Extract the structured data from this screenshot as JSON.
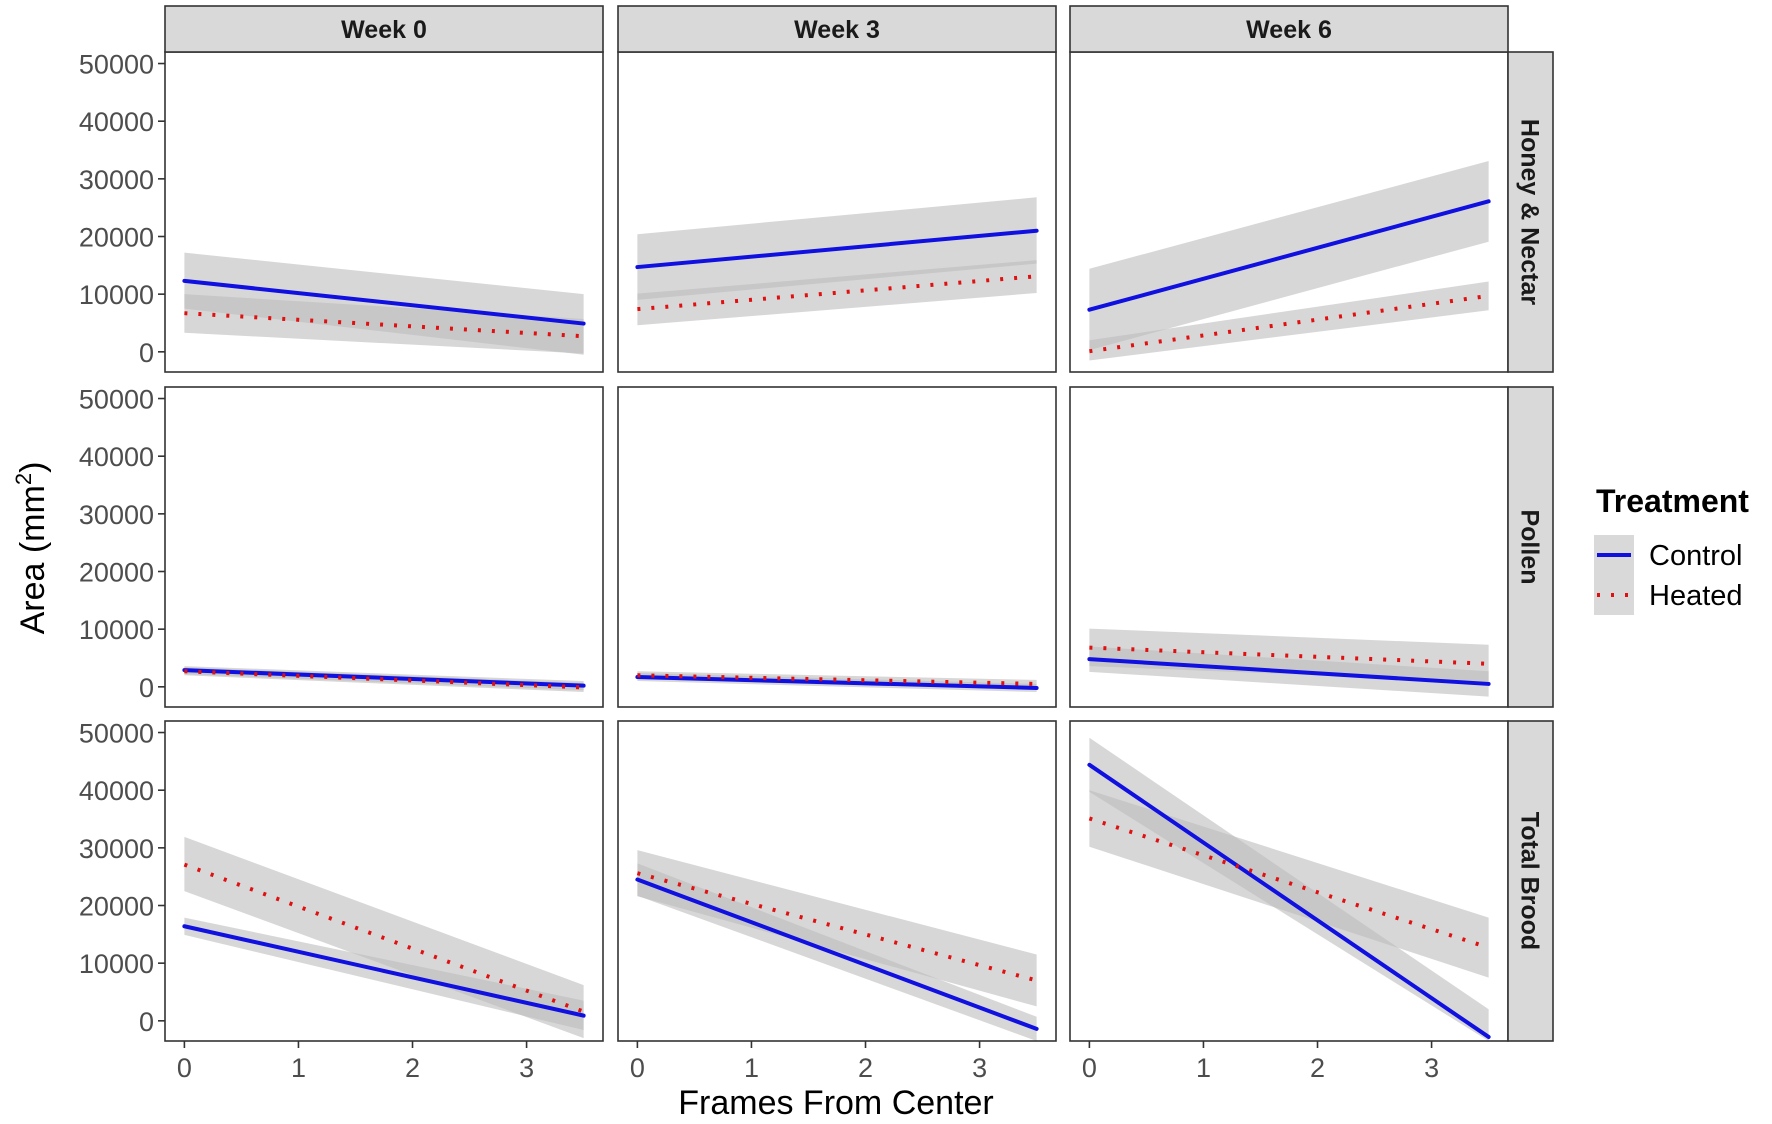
{
  "chart_data": {
    "type": "line",
    "xlabel": "Frames From Center",
    "ylabel": "Area (mm",
    "ylabel_superscript": "2",
    "ylabel_close": ")",
    "xlim": [
      -0.17,
      3.67
    ],
    "ylim": [
      -3500,
      52000
    ],
    "xticks": [
      0,
      1,
      2,
      3
    ],
    "yticks": [
      0,
      10000,
      20000,
      30000,
      40000,
      50000
    ],
    "columns": [
      "Week 0",
      "Week 3",
      "Week 6"
    ],
    "rows": [
      "Honey & Nectar",
      "Pollen",
      "Total Brood"
    ],
    "series_styles": {
      "Control": {
        "color": "#1010e0",
        "dash": "solid"
      },
      "Heated": {
        "color": "#e01010",
        "dash": "dotted"
      }
    },
    "ribbon_color": "#bdbdbd",
    "legend": {
      "title": "Treatment",
      "items": [
        {
          "name": "Control",
          "color": "#1010e0",
          "dash": "solid"
        },
        {
          "name": "Heated",
          "color": "#e01010",
          "dash": "dotted"
        }
      ]
    },
    "panels": [
      {
        "row": "Honey & Nectar",
        "col": "Week 0",
        "series": [
          {
            "name": "Control",
            "x": [
              0,
              3.5
            ],
            "y": [
              12300,
              4900
            ],
            "lower": [
              7500,
              -500
            ],
            "upper": [
              17200,
              10000
            ]
          },
          {
            "name": "Heated",
            "x": [
              0,
              3.5
            ],
            "y": [
              6700,
              2700
            ],
            "lower": [
              3300,
              -300
            ],
            "upper": [
              10000,
              5700
            ]
          }
        ]
      },
      {
        "row": "Honey & Nectar",
        "col": "Week 3",
        "series": [
          {
            "name": "Control",
            "x": [
              0,
              3.5
            ],
            "y": [
              14700,
              21000
            ],
            "lower": [
              9000,
              15300
            ],
            "upper": [
              20400,
              26800
            ]
          },
          {
            "name": "Heated",
            "x": [
              0,
              3.5
            ],
            "y": [
              7400,
              13100
            ],
            "lower": [
              4600,
              10200
            ],
            "upper": [
              10100,
              15900
            ]
          }
        ]
      },
      {
        "row": "Honey & Nectar",
        "col": "Week 6",
        "series": [
          {
            "name": "Control",
            "x": [
              0,
              3.5
            ],
            "y": [
              7300,
              26100
            ],
            "lower": [
              300,
              19100
            ],
            "upper": [
              14400,
              33100
            ]
          },
          {
            "name": "Heated",
            "x": [
              0,
              3.5
            ],
            "y": [
              100,
              9700
            ],
            "lower": [
              -1500,
              7200
            ],
            "upper": [
              2000,
              12200
            ]
          }
        ]
      },
      {
        "row": "Pollen",
        "col": "Week 0",
        "series": [
          {
            "name": "Control",
            "x": [
              0,
              3.5
            ],
            "y": [
              2900,
              200
            ],
            "lower": [
              2200,
              -600
            ],
            "upper": [
              3600,
              1000
            ]
          },
          {
            "name": "Heated",
            "x": [
              0,
              3.5
            ],
            "y": [
              2700,
              -100
            ],
            "lower": [
              2000,
              -900
            ],
            "upper": [
              3400,
              700
            ]
          }
        ]
      },
      {
        "row": "Pollen",
        "col": "Week 3",
        "series": [
          {
            "name": "Control",
            "x": [
              0,
              3.5
            ],
            "y": [
              1700,
              -200
            ],
            "lower": [
              1000,
              -900
            ],
            "upper": [
              2400,
              500
            ]
          },
          {
            "name": "Heated",
            "x": [
              0,
              3.5
            ],
            "y": [
              2000,
              500
            ],
            "lower": [
              1300,
              -200
            ],
            "upper": [
              2700,
              1200
            ]
          }
        ]
      },
      {
        "row": "Pollen",
        "col": "Week 6",
        "series": [
          {
            "name": "Control",
            "x": [
              0,
              3.5
            ],
            "y": [
              4800,
              500
            ],
            "lower": [
              2600,
              -1700
            ],
            "upper": [
              7000,
              2700
            ]
          },
          {
            "name": "Heated",
            "x": [
              0,
              3.5
            ],
            "y": [
              6800,
              4000
            ],
            "lower": [
              3600,
              800
            ],
            "upper": [
              10100,
              7300
            ]
          }
        ]
      },
      {
        "row": "Total Brood",
        "col": "Week 0",
        "series": [
          {
            "name": "Control",
            "x": [
              0,
              3.5
            ],
            "y": [
              16400,
              900
            ],
            "lower": [
              14900,
              -1600
            ],
            "upper": [
              17900,
              3500
            ]
          },
          {
            "name": "Heated",
            "x": [
              0,
              3.5
            ],
            "y": [
              27100,
              1600
            ],
            "lower": [
              22500,
              -3000
            ],
            "upper": [
              31900,
              6200
            ]
          }
        ]
      },
      {
        "row": "Total Brood",
        "col": "Week 3",
        "series": [
          {
            "name": "Control",
            "x": [
              0,
              3.5
            ],
            "y": [
              24500,
              -1400
            ],
            "lower": [
              21700,
              -3500
            ],
            "upper": [
              27300,
              700
            ]
          },
          {
            "name": "Heated",
            "x": [
              0,
              3.5
            ],
            "y": [
              25600,
              7000
            ],
            "lower": [
              21600,
              2500
            ],
            "upper": [
              29600,
              11500
            ]
          }
        ]
      },
      {
        "row": "Total Brood",
        "col": "Week 6",
        "series": [
          {
            "name": "Control",
            "x": [
              0,
              3.5
            ],
            "y": [
              44400,
              -2800
            ],
            "lower": [
              39700,
              -3500
            ],
            "upper": [
              49100,
              2000
            ]
          },
          {
            "name": "Heated",
            "x": [
              0,
              3.5
            ],
            "y": [
              35100,
              12700
            ],
            "lower": [
              30200,
              7500
            ],
            "upper": [
              40000,
              17900
            ]
          }
        ]
      }
    ]
  }
}
